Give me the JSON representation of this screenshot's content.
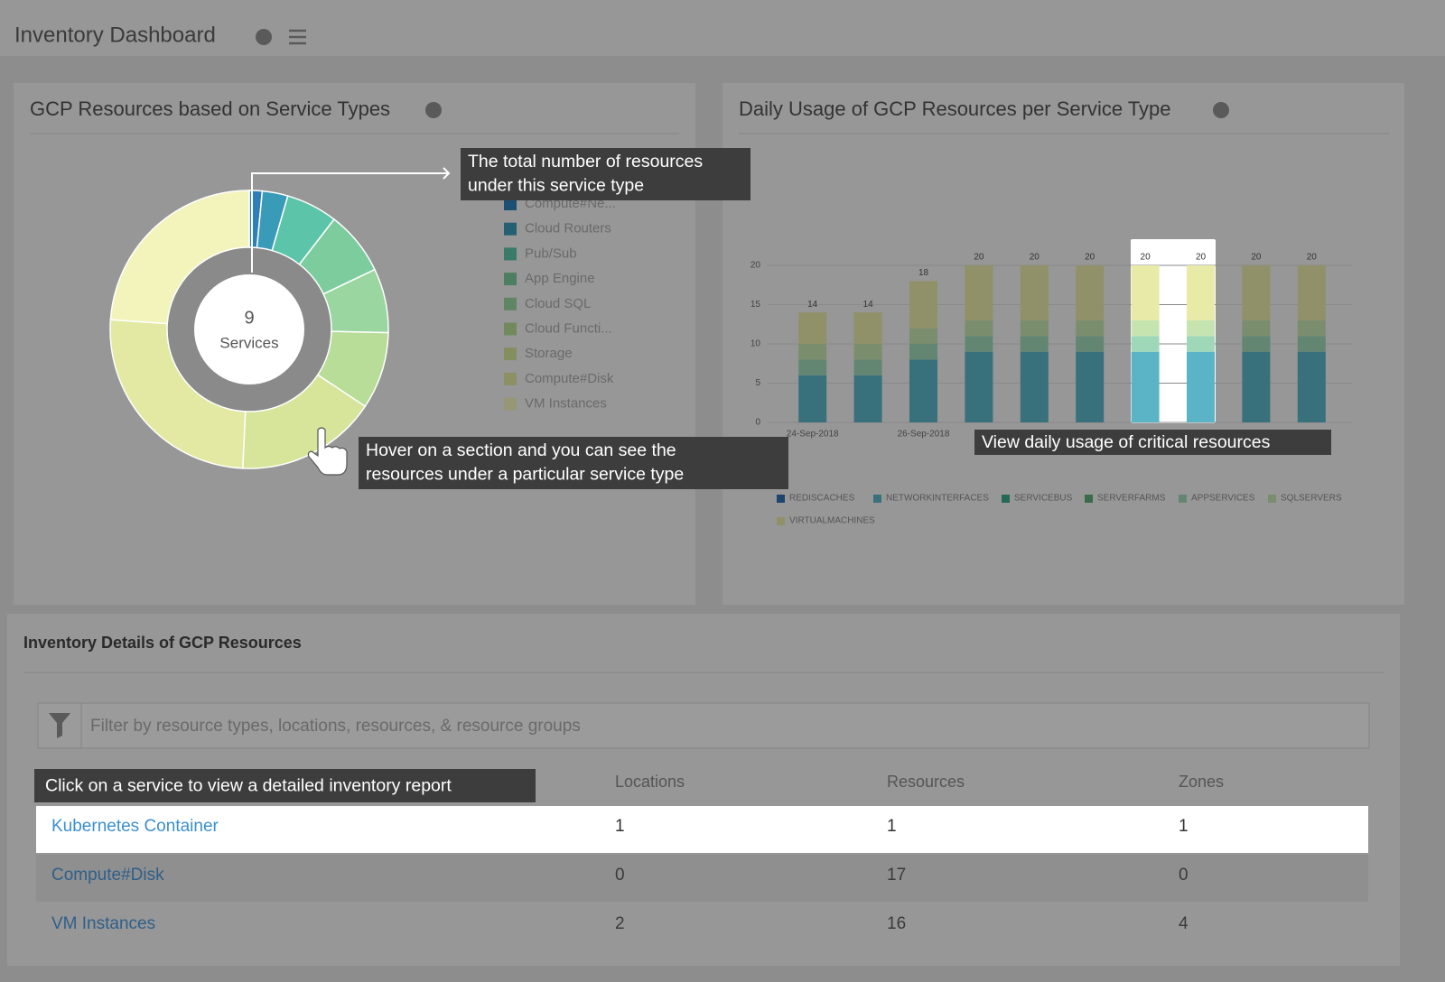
{
  "header": {
    "title": "Inventory Dashboard"
  },
  "service_types": {
    "type": "donut",
    "title": "GCP Resources based on Service Types",
    "center_value": 9,
    "center_label": "Services",
    "categories": [
      "Compute#Ne...",
      "Cloud Routers",
      "Pub/Sub",
      "App Engine",
      "Cloud SQL",
      "Cloud Functi...",
      "Storage",
      "Compute#Disk",
      "VM Instances"
    ],
    "values": [
      1,
      2,
      4,
      5,
      5,
      6,
      11,
      17,
      16
    ],
    "colors": [
      "#2e7fb8",
      "#3a9bb8",
      "#5cc4a8",
      "#7ccc9e",
      "#9ad6a0",
      "#b8dd98",
      "#d6e59a",
      "#e3e9a2",
      "#f3f3bc"
    ]
  },
  "daily_usage": {
    "type": "stacked-bar",
    "title": "Daily Usage of GCP Resources per Service Type",
    "categories": [
      "24-Sep-2018",
      null,
      "26-Sep-2018",
      null,
      null,
      null,
      null,
      null,
      null,
      null
    ],
    "totals": [
      14,
      14,
      18,
      20,
      20,
      20,
      20,
      20,
      20,
      20
    ],
    "ylim": [
      0,
      20
    ],
    "yticks": [
      0,
      5,
      10,
      15,
      20
    ],
    "grid": true,
    "series": [
      {
        "name": "REDISCACHES",
        "color": "#2e6fb0",
        "values": [
          0,
          0,
          0,
          0,
          0,
          0,
          0,
          0,
          0,
          0
        ]
      },
      {
        "name": "NETWORKINTERFACES",
        "color": "#5ab4c6",
        "values": [
          6,
          6,
          8,
          9,
          9,
          9,
          9,
          9,
          9,
          9
        ]
      },
      {
        "name": "SERVICEBUS",
        "color": "#3aaa8a",
        "values": [
          0,
          0,
          0,
          0,
          0,
          0,
          0,
          0,
          0,
          0
        ]
      },
      {
        "name": "SERVERFARMS",
        "color": "#5aaf78",
        "values": [
          0,
          0,
          0,
          0,
          0,
          0,
          0,
          0,
          0,
          0
        ]
      },
      {
        "name": "APPSERVICES",
        "color": "#9fd8b8",
        "values": [
          2,
          2,
          2,
          2,
          2,
          2,
          2,
          2,
          2,
          2
        ]
      },
      {
        "name": "SQLSERVERS",
        "color": "#c5e4b0",
        "values": [
          2,
          2,
          2,
          2,
          2,
          2,
          2,
          2,
          2,
          2
        ]
      },
      {
        "name": "VIRTUALMACHINES",
        "color": "#e8eaa8",
        "values": [
          4,
          4,
          6,
          7,
          7,
          7,
          7,
          7,
          7,
          7
        ]
      }
    ]
  },
  "inventory": {
    "title": "Inventory Details of GCP Resources",
    "filter_placeholder": "Filter by resource types, locations, resources, & resource groups",
    "columns": [
      "Locations",
      "Resources",
      "Zones"
    ],
    "rows": [
      [
        "Kubernetes Container",
        1,
        1,
        1
      ],
      [
        "Compute#Disk",
        0,
        17,
        0
      ],
      [
        "VM Instances",
        2,
        16,
        4
      ]
    ]
  },
  "tooltips": [
    [
      "The total number of resources",
      "under this service type"
    ],
    [
      "Hover on a section and you can see the",
      "resources under a particular service type"
    ],
    [
      "View daily usage of critical resources"
    ],
    [
      "Click on a service to view a detailed inventory report"
    ]
  ]
}
